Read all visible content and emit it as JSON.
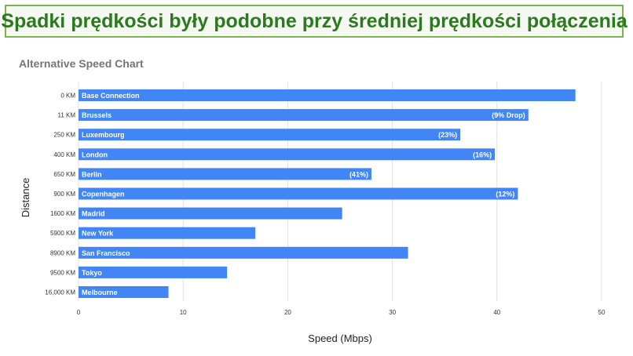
{
  "banner": {
    "text": "Spadki prędkości były podobne przy średniej prędkości połączenia"
  },
  "chart_data": {
    "type": "bar",
    "orientation": "horizontal",
    "title": "Alternative Speed Chart",
    "xlabel": "Speed (Mbps)",
    "ylabel": "Distance",
    "xlim": [
      0,
      50
    ],
    "xticks": [
      0,
      10,
      20,
      30,
      40,
      50
    ],
    "grid": true,
    "bar_color": "#4285f4",
    "categories": [
      "0 KM",
      "11 KM",
      "250 KM",
      "400 KM",
      "650 KM",
      "900 KM",
      "1600 KM",
      "5900 KM",
      "8900 KM",
      "9500 KM",
      "16,000 KM"
    ],
    "city_labels": [
      "Base Connection",
      "Brussels",
      "Luxembourg",
      "London",
      "Berlin",
      "Copenhagen",
      "Madrid",
      "New York",
      "San Francisco",
      "Tokyo",
      "Melbourne"
    ],
    "drop_labels": [
      "",
      "(9% Drop)",
      "(23%)",
      "(16%)",
      "(41%)",
      "(12%)",
      "",
      "",
      "",
      "",
      ""
    ],
    "values": [
      47.5,
      43.0,
      36.5,
      39.8,
      28.0,
      42.0,
      25.2,
      16.9,
      31.5,
      14.2,
      8.6
    ]
  }
}
